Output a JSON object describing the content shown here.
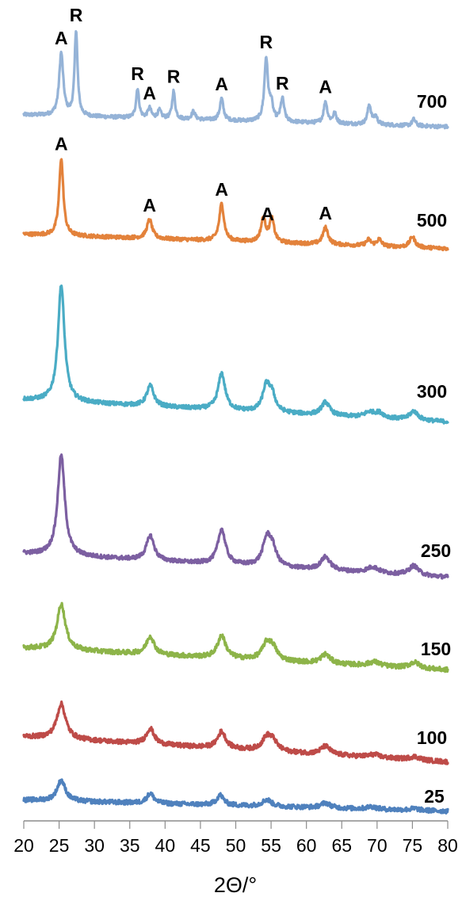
{
  "chart_data": {
    "type": "line",
    "xlabel": "2Θ/°",
    "ylabel": "",
    "title": "",
    "xlim": [
      20,
      80
    ],
    "xticks": [
      20,
      25,
      30,
      35,
      40,
      45,
      50,
      55,
      60,
      65,
      70,
      75,
      80
    ],
    "grid": false,
    "legend": "none",
    "series": [
      {
        "name": "700",
        "color": "#95b3d7",
        "baseline": 0.6,
        "peaks": [
          [
            25.3,
            9.5,
            0.35
          ],
          [
            27.4,
            13.0,
            0.25
          ],
          [
            36.1,
            4.5,
            0.25
          ],
          [
            37.8,
            1.5,
            0.3
          ],
          [
            39.2,
            1.2,
            0.3
          ],
          [
            41.2,
            4.2,
            0.25
          ],
          [
            44.0,
            1.2,
            0.3
          ],
          [
            48.0,
            3.3,
            0.3
          ],
          [
            54.3,
            9.5,
            0.3
          ],
          [
            55.0,
            2.5,
            0.3
          ],
          [
            56.6,
            3.5,
            0.3
          ],
          [
            62.7,
            3.3,
            0.3
          ],
          [
            64.0,
            1.5,
            0.3
          ],
          [
            68.9,
            3.0,
            0.3
          ],
          [
            69.8,
            1.2,
            0.3
          ],
          [
            75.2,
            1.0,
            0.3
          ]
        ]
      },
      {
        "name": "500",
        "color": "#e3823b",
        "baseline": 0.5,
        "peaks": [
          [
            25.3,
            11.5,
            0.35
          ],
          [
            37.8,
            2.8,
            0.45
          ],
          [
            48.0,
            5.5,
            0.4
          ],
          [
            53.9,
            3.4,
            0.4
          ],
          [
            55.1,
            3.4,
            0.4
          ],
          [
            62.7,
            2.5,
            0.45
          ],
          [
            68.8,
            0.9,
            0.4
          ],
          [
            70.3,
            1.0,
            0.4
          ],
          [
            75.0,
            1.6,
            0.45
          ]
        ]
      },
      {
        "name": "300",
        "color": "#4aacc5",
        "baseline": 0.6,
        "peaks": [
          [
            25.3,
            16.0,
            0.55
          ],
          [
            37.9,
            2.8,
            0.6
          ],
          [
            48.0,
            5.0,
            0.6
          ],
          [
            54.3,
            3.3,
            0.6
          ],
          [
            55.1,
            2.3,
            0.6
          ],
          [
            62.7,
            1.8,
            0.7
          ],
          [
            68.9,
            0.7,
            0.8
          ],
          [
            70.3,
            0.7,
            0.8
          ],
          [
            75.2,
            1.2,
            0.7
          ]
        ]
      },
      {
        "name": "250",
        "color": "#7c5fa1",
        "baseline": 0.7,
        "peaks": [
          [
            25.3,
            13.8,
            0.6
          ],
          [
            37.9,
            3.4,
            0.65
          ],
          [
            48.0,
            4.8,
            0.65
          ],
          [
            54.4,
            3.6,
            0.7
          ],
          [
            55.2,
            2.2,
            0.7
          ],
          [
            62.7,
            1.8,
            0.8
          ],
          [
            69.4,
            0.8,
            1.0
          ],
          [
            75.2,
            1.3,
            0.8
          ]
        ]
      },
      {
        "name": "150",
        "color": "#8db449",
        "baseline": 0.7,
        "peaks": [
          [
            25.3,
            5.5,
            0.7
          ],
          [
            37.9,
            2.2,
            0.65
          ],
          [
            48.0,
            2.7,
            0.7
          ],
          [
            54.4,
            2.0,
            0.8
          ],
          [
            55.3,
            1.2,
            0.7
          ],
          [
            62.7,
            1.1,
            0.8
          ],
          [
            69.6,
            0.5,
            1.0
          ],
          [
            75.3,
            0.7,
            0.9
          ]
        ]
      },
      {
        "name": "100",
        "color": "#be4b48",
        "baseline": 0.7,
        "peaks": [
          [
            25.3,
            4.2,
            0.75
          ],
          [
            37.9,
            1.9,
            0.65
          ],
          [
            48.0,
            2.0,
            0.7
          ],
          [
            54.4,
            1.6,
            0.8
          ],
          [
            55.3,
            1.0,
            0.7
          ],
          [
            62.7,
            1.0,
            0.8
          ],
          [
            69.6,
            0.35,
            1.0
          ],
          [
            75.3,
            0.4,
            0.9
          ]
        ]
      },
      {
        "name": "25",
        "color": "#4f81bd",
        "baseline": 0.5,
        "peaks": [
          [
            25.3,
            2.5,
            0.7
          ],
          [
            37.9,
            1.2,
            0.6
          ],
          [
            47.8,
            1.2,
            0.6
          ],
          [
            54.4,
            0.8,
            0.8
          ],
          [
            62.7,
            0.6,
            0.8
          ],
          [
            69.2,
            0.3,
            0.8
          ],
          [
            75.3,
            0.2,
            0.8
          ]
        ]
      }
    ],
    "annotations": [
      {
        "series": "700",
        "text": "A",
        "x": 25.3
      },
      {
        "series": "700",
        "text": "R",
        "x": 27.4
      },
      {
        "series": "700",
        "text": "R",
        "x": 36.1
      },
      {
        "series": "700",
        "text": "A",
        "x": 37.8
      },
      {
        "series": "700",
        "text": "R",
        "x": 41.2
      },
      {
        "series": "700",
        "text": "A",
        "x": 48.0
      },
      {
        "series": "700",
        "text": "R",
        "x": 54.3
      },
      {
        "series": "700",
        "text": "R",
        "x": 56.6
      },
      {
        "series": "700",
        "text": "A",
        "x": 62.7
      },
      {
        "series": "500",
        "text": "A",
        "x": 25.3
      },
      {
        "series": "500",
        "text": "A",
        "x": 37.8
      },
      {
        "series": "500",
        "text": "A",
        "x": 48.0
      },
      {
        "series": "500",
        "text": "A",
        "x": 54.5
      },
      {
        "series": "500",
        "text": "A",
        "x": 62.7
      }
    ]
  }
}
